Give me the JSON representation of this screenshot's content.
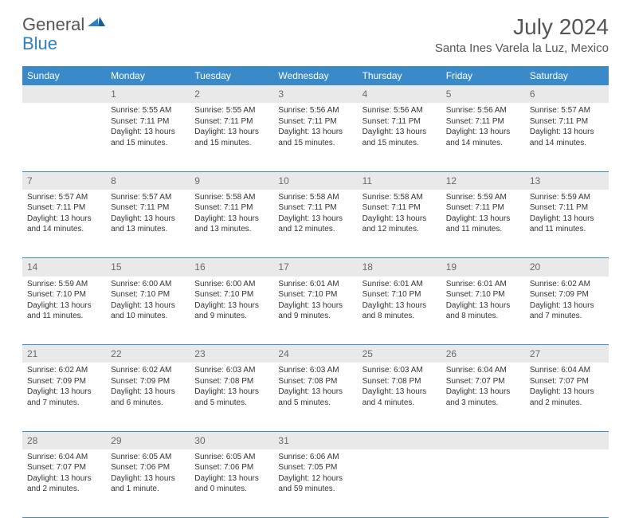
{
  "logo": {
    "general": "General",
    "blue": "Blue"
  },
  "header": {
    "month_year": "July 2024",
    "location": "Santa Ines Varela la Luz, Mexico"
  },
  "colors": {
    "header_bg": "#3a8ac9",
    "header_text": "#ffffff",
    "daynum_bg": "#e9e9e9",
    "daynum_text": "#6a6a6a",
    "body_text": "#333333",
    "rule": "#3a8ac9",
    "logo_blue": "#2f7fc3",
    "logo_gray": "#555555"
  },
  "weekdays": [
    "Sunday",
    "Monday",
    "Tuesday",
    "Wednesday",
    "Thursday",
    "Friday",
    "Saturday"
  ],
  "weeks": [
    [
      {
        "n": "",
        "sr": "",
        "ss": "",
        "dl1": "",
        "dl2": ""
      },
      {
        "n": "1",
        "sr": "Sunrise: 5:55 AM",
        "ss": "Sunset: 7:11 PM",
        "dl1": "Daylight: 13 hours",
        "dl2": "and 15 minutes."
      },
      {
        "n": "2",
        "sr": "Sunrise: 5:55 AM",
        "ss": "Sunset: 7:11 PM",
        "dl1": "Daylight: 13 hours",
        "dl2": "and 15 minutes."
      },
      {
        "n": "3",
        "sr": "Sunrise: 5:56 AM",
        "ss": "Sunset: 7:11 PM",
        "dl1": "Daylight: 13 hours",
        "dl2": "and 15 minutes."
      },
      {
        "n": "4",
        "sr": "Sunrise: 5:56 AM",
        "ss": "Sunset: 7:11 PM",
        "dl1": "Daylight: 13 hours",
        "dl2": "and 15 minutes."
      },
      {
        "n": "5",
        "sr": "Sunrise: 5:56 AM",
        "ss": "Sunset: 7:11 PM",
        "dl1": "Daylight: 13 hours",
        "dl2": "and 14 minutes."
      },
      {
        "n": "6",
        "sr": "Sunrise: 5:57 AM",
        "ss": "Sunset: 7:11 PM",
        "dl1": "Daylight: 13 hours",
        "dl2": "and 14 minutes."
      }
    ],
    [
      {
        "n": "7",
        "sr": "Sunrise: 5:57 AM",
        "ss": "Sunset: 7:11 PM",
        "dl1": "Daylight: 13 hours",
        "dl2": "and 14 minutes."
      },
      {
        "n": "8",
        "sr": "Sunrise: 5:57 AM",
        "ss": "Sunset: 7:11 PM",
        "dl1": "Daylight: 13 hours",
        "dl2": "and 13 minutes."
      },
      {
        "n": "9",
        "sr": "Sunrise: 5:58 AM",
        "ss": "Sunset: 7:11 PM",
        "dl1": "Daylight: 13 hours",
        "dl2": "and 13 minutes."
      },
      {
        "n": "10",
        "sr": "Sunrise: 5:58 AM",
        "ss": "Sunset: 7:11 PM",
        "dl1": "Daylight: 13 hours",
        "dl2": "and 12 minutes."
      },
      {
        "n": "11",
        "sr": "Sunrise: 5:58 AM",
        "ss": "Sunset: 7:11 PM",
        "dl1": "Daylight: 13 hours",
        "dl2": "and 12 minutes."
      },
      {
        "n": "12",
        "sr": "Sunrise: 5:59 AM",
        "ss": "Sunset: 7:11 PM",
        "dl1": "Daylight: 13 hours",
        "dl2": "and 11 minutes."
      },
      {
        "n": "13",
        "sr": "Sunrise: 5:59 AM",
        "ss": "Sunset: 7:11 PM",
        "dl1": "Daylight: 13 hours",
        "dl2": "and 11 minutes."
      }
    ],
    [
      {
        "n": "14",
        "sr": "Sunrise: 5:59 AM",
        "ss": "Sunset: 7:10 PM",
        "dl1": "Daylight: 13 hours",
        "dl2": "and 11 minutes."
      },
      {
        "n": "15",
        "sr": "Sunrise: 6:00 AM",
        "ss": "Sunset: 7:10 PM",
        "dl1": "Daylight: 13 hours",
        "dl2": "and 10 minutes."
      },
      {
        "n": "16",
        "sr": "Sunrise: 6:00 AM",
        "ss": "Sunset: 7:10 PM",
        "dl1": "Daylight: 13 hours",
        "dl2": "and 9 minutes."
      },
      {
        "n": "17",
        "sr": "Sunrise: 6:01 AM",
        "ss": "Sunset: 7:10 PM",
        "dl1": "Daylight: 13 hours",
        "dl2": "and 9 minutes."
      },
      {
        "n": "18",
        "sr": "Sunrise: 6:01 AM",
        "ss": "Sunset: 7:10 PM",
        "dl1": "Daylight: 13 hours",
        "dl2": "and 8 minutes."
      },
      {
        "n": "19",
        "sr": "Sunrise: 6:01 AM",
        "ss": "Sunset: 7:10 PM",
        "dl1": "Daylight: 13 hours",
        "dl2": "and 8 minutes."
      },
      {
        "n": "20",
        "sr": "Sunrise: 6:02 AM",
        "ss": "Sunset: 7:09 PM",
        "dl1": "Daylight: 13 hours",
        "dl2": "and 7 minutes."
      }
    ],
    [
      {
        "n": "21",
        "sr": "Sunrise: 6:02 AM",
        "ss": "Sunset: 7:09 PM",
        "dl1": "Daylight: 13 hours",
        "dl2": "and 7 minutes."
      },
      {
        "n": "22",
        "sr": "Sunrise: 6:02 AM",
        "ss": "Sunset: 7:09 PM",
        "dl1": "Daylight: 13 hours",
        "dl2": "and 6 minutes."
      },
      {
        "n": "23",
        "sr": "Sunrise: 6:03 AM",
        "ss": "Sunset: 7:08 PM",
        "dl1": "Daylight: 13 hours",
        "dl2": "and 5 minutes."
      },
      {
        "n": "24",
        "sr": "Sunrise: 6:03 AM",
        "ss": "Sunset: 7:08 PM",
        "dl1": "Daylight: 13 hours",
        "dl2": "and 5 minutes."
      },
      {
        "n": "25",
        "sr": "Sunrise: 6:03 AM",
        "ss": "Sunset: 7:08 PM",
        "dl1": "Daylight: 13 hours",
        "dl2": "and 4 minutes."
      },
      {
        "n": "26",
        "sr": "Sunrise: 6:04 AM",
        "ss": "Sunset: 7:07 PM",
        "dl1": "Daylight: 13 hours",
        "dl2": "and 3 minutes."
      },
      {
        "n": "27",
        "sr": "Sunrise: 6:04 AM",
        "ss": "Sunset: 7:07 PM",
        "dl1": "Daylight: 13 hours",
        "dl2": "and 2 minutes."
      }
    ],
    [
      {
        "n": "28",
        "sr": "Sunrise: 6:04 AM",
        "ss": "Sunset: 7:07 PM",
        "dl1": "Daylight: 13 hours",
        "dl2": "and 2 minutes."
      },
      {
        "n": "29",
        "sr": "Sunrise: 6:05 AM",
        "ss": "Sunset: 7:06 PM",
        "dl1": "Daylight: 13 hours",
        "dl2": "and 1 minute."
      },
      {
        "n": "30",
        "sr": "Sunrise: 6:05 AM",
        "ss": "Sunset: 7:06 PM",
        "dl1": "Daylight: 13 hours",
        "dl2": "and 0 minutes."
      },
      {
        "n": "31",
        "sr": "Sunrise: 6:06 AM",
        "ss": "Sunset: 7:05 PM",
        "dl1": "Daylight: 12 hours",
        "dl2": "and 59 minutes."
      },
      {
        "n": "",
        "sr": "",
        "ss": "",
        "dl1": "",
        "dl2": ""
      },
      {
        "n": "",
        "sr": "",
        "ss": "",
        "dl1": "",
        "dl2": ""
      },
      {
        "n": "",
        "sr": "",
        "ss": "",
        "dl1": "",
        "dl2": ""
      }
    ]
  ]
}
